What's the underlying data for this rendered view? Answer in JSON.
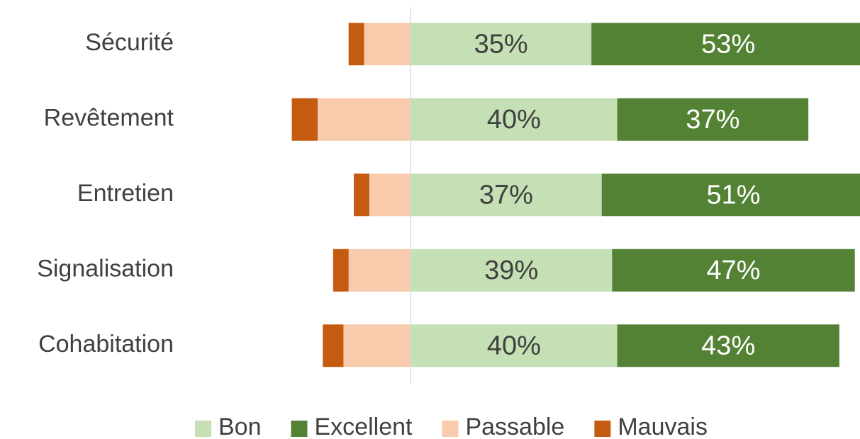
{
  "chart_data": {
    "type": "bar",
    "orientation": "horizontal",
    "stacked": true,
    "categories": [
      "Sécurité",
      "Revêtement",
      "Entretien",
      "Signalisation",
      "Cohabitation"
    ],
    "series": [
      {
        "name": "Bon",
        "color": "#c5e0b4",
        "values": [
          35,
          40,
          37,
          39,
          40
        ],
        "value_labels": [
          "35%",
          "40%",
          "37%",
          "39%",
          "40%"
        ]
      },
      {
        "name": "Excellent",
        "color": "#548235",
        "values": [
          53,
          37,
          51,
          47,
          43
        ],
        "value_labels": [
          "53%",
          "37%",
          "51%",
          "47%",
          "43%"
        ]
      },
      {
        "name": "Passable",
        "color": "#f8cbad",
        "values": [
          -9,
          -18,
          -8,
          -12,
          -13
        ]
      },
      {
        "name": "Mauvais",
        "color": "#c55a11",
        "values": [
          -3,
          -5,
          -3,
          -3,
          -4
        ]
      }
    ],
    "xlim": [
      -25,
      87
    ],
    "legend": "bottom"
  }
}
